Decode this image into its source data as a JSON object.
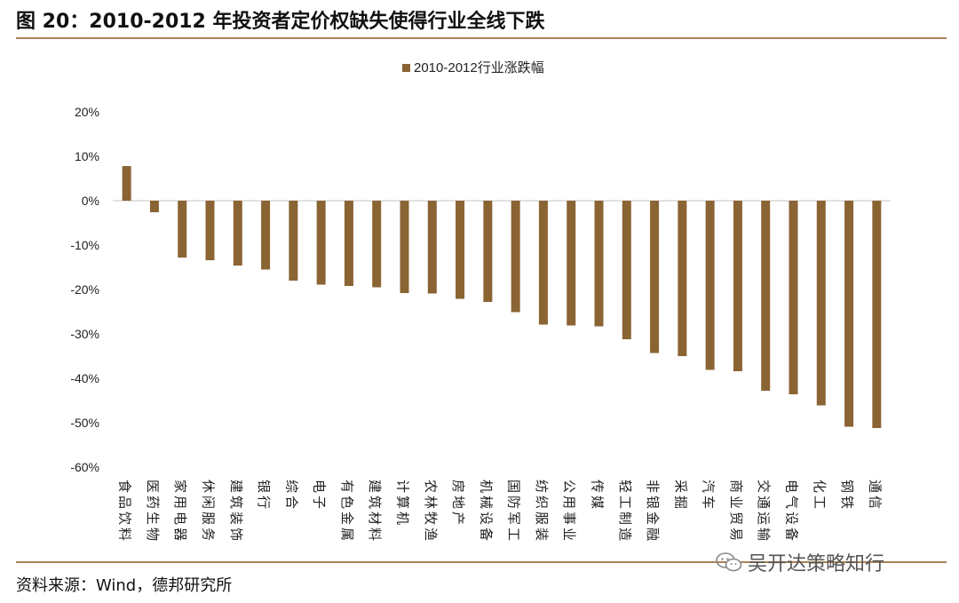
{
  "header": {
    "title": "图 20：2010-2012 年投资者定价权缺失使得行业全线下跌"
  },
  "footer": {
    "source": "资料来源：Wind，德邦研究所",
    "watermark": "吴开达策略知行"
  },
  "colors": {
    "bar": "#8b6434",
    "rule": "#a98357",
    "axis": "#d9d9d9"
  },
  "chart_data": {
    "type": "bar",
    "title": "",
    "legend": {
      "label": "2010-2012行业涨跌幅",
      "position": "top-center"
    },
    "xlabel": "",
    "ylabel": "",
    "ylim": [
      -60,
      20
    ],
    "yticks": [
      20,
      10,
      0,
      -10,
      -20,
      -30,
      -40,
      -50,
      -60
    ],
    "ytick_labels": [
      "20%",
      "10%",
      "0%",
      "-10%",
      "-20%",
      "-30%",
      "-40%",
      "-50%",
      "-60%"
    ],
    "grid": false,
    "categories": [
      "食品饮料",
      "医药生物",
      "家用电器",
      "休闲服务",
      "建筑装饰",
      "银行",
      "综合",
      "电子",
      "有色金属",
      "建筑材料",
      "计算机",
      "农林牧渔",
      "房地产",
      "机械设备",
      "国防军工",
      "纺织服装",
      "公用事业",
      "传媒",
      "轻工制造",
      "非银金融",
      "采掘",
      "汽车",
      "商业贸易",
      "交通运输",
      "电气设备",
      "化工",
      "钢铁",
      "通信"
    ],
    "values": [
      7.8,
      -2.6,
      -12.8,
      -13.4,
      -14.6,
      -15.5,
      -18.0,
      -18.9,
      -19.2,
      -19.5,
      -20.8,
      -20.9,
      -22.1,
      -22.8,
      -25.1,
      -27.9,
      -28.1,
      -28.3,
      -31.2,
      -34.3,
      -35.0,
      -38.1,
      -38.4,
      -42.8,
      -43.6,
      -46.1,
      -50.9,
      -51.2
    ]
  }
}
